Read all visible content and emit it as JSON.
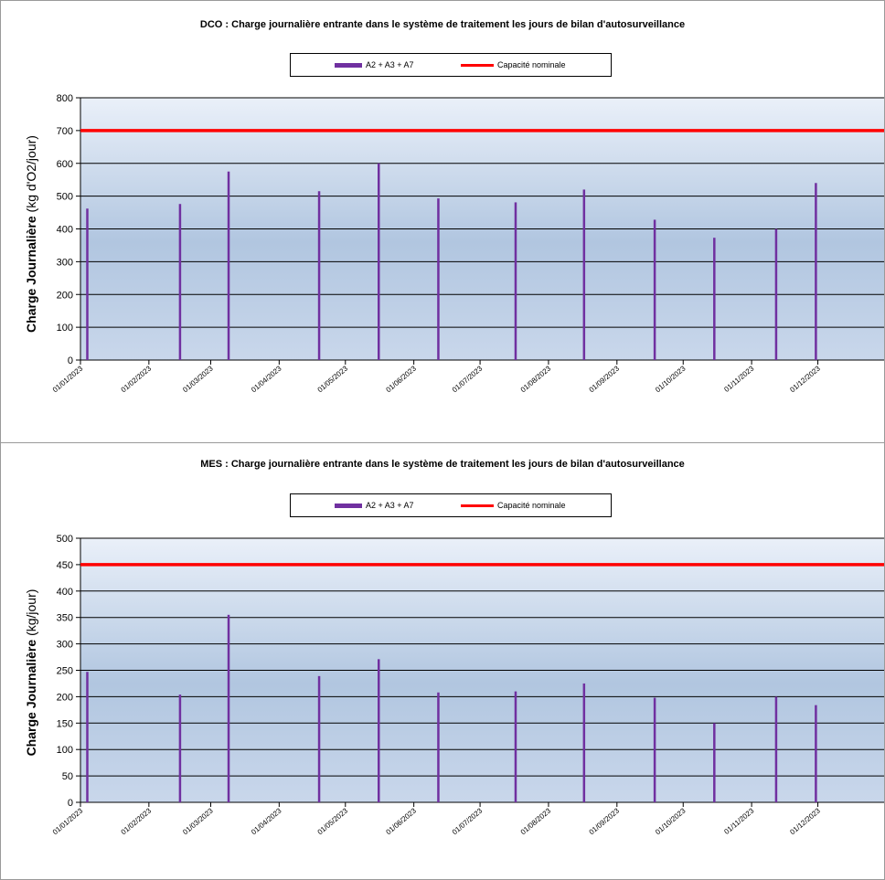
{
  "colors": {
    "series": "#7030a0",
    "capacity": "#ff0000",
    "gridline": "#000000"
  },
  "chart_data": [
    {
      "type": "bar",
      "title": "DCO : Charge journalière entrante dans le système de traitement les jours de bilan d'autosurveillance",
      "ylabel_bold": "Charge Journalière",
      "ylabel_unit": "(kg d'O2/jour)",
      "ylim": [
        0,
        800
      ],
      "yticks": [
        0,
        100,
        200,
        300,
        400,
        500,
        600,
        700,
        800
      ],
      "xlim": [
        "2023-01-01",
        "2023-12-31"
      ],
      "xticks": [
        "01/01/2023",
        "01/02/2023",
        "01/03/2023",
        "01/04/2023",
        "01/05/2023",
        "01/06/2023",
        "01/07/2023",
        "01/08/2023",
        "01/09/2023",
        "01/10/2023",
        "01/11/2023",
        "01/12/2023"
      ],
      "legend": {
        "series": "A2 + A3 + A7",
        "line": "Capacité nominale"
      },
      "capacity": 700,
      "grid": true,
      "points": [
        {
          "x": "2023-01-04",
          "y": 462
        },
        {
          "x": "2023-02-15",
          "y": 476
        },
        {
          "x": "2023-03-09",
          "y": 575
        },
        {
          "x": "2023-04-19",
          "y": 515
        },
        {
          "x": "2023-05-16",
          "y": 600
        },
        {
          "x": "2023-06-12",
          "y": 493
        },
        {
          "x": "2023-07-17",
          "y": 481
        },
        {
          "x": "2023-08-17",
          "y": 520
        },
        {
          "x": "2023-09-18",
          "y": 428
        },
        {
          "x": "2023-10-15",
          "y": 373
        },
        {
          "x": "2023-11-12",
          "y": 400
        },
        {
          "x": "2023-11-30",
          "y": 540
        }
      ]
    },
    {
      "type": "bar",
      "title": "MES : Charge journalière entrante dans le système de traitement les jours de bilan d'autosurveillance",
      "ylabel_bold": "Charge Journalière",
      "ylabel_unit": "(kg/jour)",
      "ylim": [
        0,
        500
      ],
      "yticks": [
        0,
        50,
        100,
        150,
        200,
        250,
        300,
        350,
        400,
        450,
        500
      ],
      "xlim": [
        "2023-01-01",
        "2023-12-31"
      ],
      "xticks": [
        "01/01/2023",
        "01/02/2023",
        "01/03/2023",
        "01/04/2023",
        "01/05/2023",
        "01/06/2023",
        "01/07/2023",
        "01/08/2023",
        "01/09/2023",
        "01/10/2023",
        "01/11/2023",
        "01/12/2023"
      ],
      "legend": {
        "series": "A2 + A3 + A7",
        "line": "Capacité nominale"
      },
      "capacity": 450,
      "grid": true,
      "points": [
        {
          "x": "2023-01-04",
          "y": 247
        },
        {
          "x": "2023-02-15",
          "y": 204
        },
        {
          "x": "2023-03-09",
          "y": 355
        },
        {
          "x": "2023-04-19",
          "y": 239
        },
        {
          "x": "2023-05-16",
          "y": 271
        },
        {
          "x": "2023-06-12",
          "y": 208
        },
        {
          "x": "2023-07-17",
          "y": 210
        },
        {
          "x": "2023-08-17",
          "y": 225
        },
        {
          "x": "2023-09-18",
          "y": 198
        },
        {
          "x": "2023-10-15",
          "y": 150
        },
        {
          "x": "2023-11-12",
          "y": 200
        },
        {
          "x": "2023-11-30",
          "y": 184
        }
      ]
    }
  ]
}
